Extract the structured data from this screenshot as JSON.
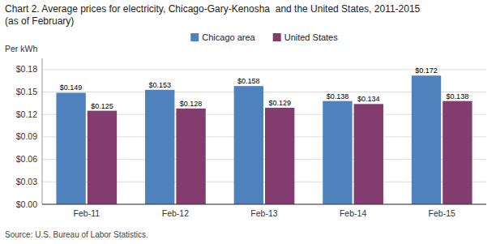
{
  "chart_data": {
    "type": "bar",
    "title": "Chart 2. Average prices for electricity, Chicago-Gary-Kenosha  and the United States, 2011-2015",
    "subtitle": "(as of February)",
    "y_label": "Per kWh",
    "source": "Source: U.S. Bureau of Labor Statistics.",
    "categories": [
      "Feb-11",
      "Feb-12",
      "Feb-13",
      "Feb-14",
      "Feb-15"
    ],
    "series": [
      {
        "name": "Chicago area",
        "color": "#4F81BD",
        "values": [
          0.149,
          0.153,
          0.158,
          0.138,
          0.172
        ],
        "value_labels": [
          "$0.149",
          "$0.153",
          "$0.158",
          "$0.138",
          "$0.172"
        ]
      },
      {
        "name": "United States",
        "color": "#833C6E",
        "values": [
          0.125,
          0.128,
          0.129,
          0.134,
          0.138
        ],
        "value_labels": [
          "$0.125",
          "$0.128",
          "$0.129",
          "$0.134",
          "$0.138"
        ]
      }
    ],
    "ylim": [
      0,
      0.195
    ],
    "yticks": [
      {
        "value": 0.0,
        "label": "$0.00"
      },
      {
        "value": 0.03,
        "label": "$0.03"
      },
      {
        "value": 0.06,
        "label": "$0.06"
      },
      {
        "value": 0.09,
        "label": "$0.09"
      },
      {
        "value": 0.12,
        "label": "$0.12"
      },
      {
        "value": 0.15,
        "label": "$0.15"
      },
      {
        "value": 0.18,
        "label": "$0.18"
      }
    ],
    "grid": true,
    "legend": "top",
    "data_labels": true
  }
}
